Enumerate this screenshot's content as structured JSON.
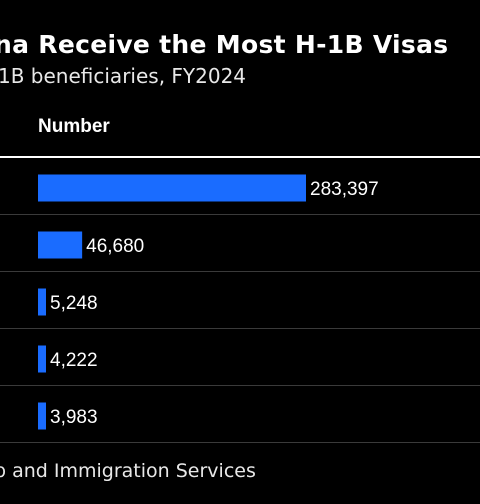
{
  "title": "na Receive the Most H-1B Visas",
  "subtitle": "1B beneficiaries, FY2024",
  "source": "p and Immigration Services",
  "colors": {
    "bar": "#1a6cff",
    "background": "#000000",
    "text": "#ffffff",
    "divider": "#3a3a3a"
  },
  "chart_data": {
    "type": "bar",
    "orientation": "horizontal",
    "column_header": "Number",
    "categories": [
      "",
      "",
      "",
      "",
      ""
    ],
    "values": [
      283397,
      46680,
      5248,
      4222,
      3983
    ],
    "labels": [
      "283,397",
      "46,680",
      "5,248",
      "4,222",
      "3,983"
    ],
    "xlim": [
      0,
      283397
    ]
  }
}
